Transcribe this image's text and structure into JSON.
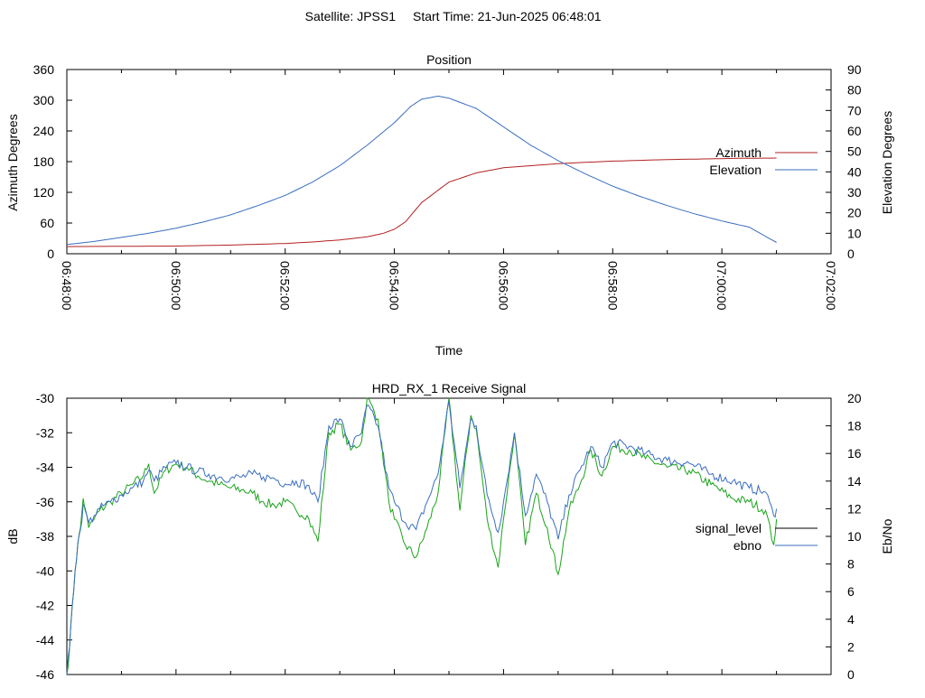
{
  "header": {
    "satellite_label": "Satellite: JPSS1",
    "start_time_label": "Start Time: 21-Jun-2025 06:48:01"
  },
  "colors": {
    "azimuth": "#b22222",
    "elevation": "#3a6ebf",
    "signal_level": "#1aa31a",
    "ebno": "#3a6ebf",
    "signal_level_legend": "#000000"
  },
  "chart_data": [
    {
      "type": "line",
      "title": "Position",
      "xlabel": "Time",
      "ylabel": "Azimuth Degrees",
      "y2label": "Elevation Degrees",
      "x_ticks": [
        "06:48:00",
        "06:50:00",
        "06:52:00",
        "06:54:00",
        "06:56:00",
        "06:58:00",
        "07:00:00",
        "07:02:00"
      ],
      "xlim_minutes": [
        0,
        14
      ],
      "ylim": [
        0,
        360
      ],
      "y_ticks": [
        "0",
        "60",
        "120",
        "180",
        "240",
        "300",
        "360"
      ],
      "y2lim": [
        0,
        90
      ],
      "y2_ticks": [
        "0",
        "10",
        "20",
        "30",
        "40",
        "50",
        "60",
        "70",
        "80",
        "90"
      ],
      "legend": "right",
      "series": [
        {
          "name": "Azimuth",
          "axis": "y1",
          "x_minutes": [
            0,
            1,
            2,
            3,
            3.5,
            4,
            4.5,
            5,
            5.5,
            5.8,
            6,
            6.2,
            6.5,
            7,
            7.5,
            8,
            9,
            10,
            11,
            11.8,
            12.3,
            13
          ],
          "values": [
            14,
            14.5,
            15,
            17,
            18.5,
            20,
            23,
            27,
            33,
            40,
            48,
            62,
            100,
            140,
            158,
            168,
            176,
            181,
            184,
            185.5,
            186.5,
            187
          ]
        },
        {
          "name": "Elevation",
          "axis": "y2",
          "x_minutes": [
            0,
            0.5,
            1,
            1.5,
            2,
            2.5,
            3,
            3.5,
            4,
            4.5,
            5,
            5.5,
            6,
            6.3,
            6.5,
            6.8,
            7,
            7.5,
            8,
            8.5,
            9,
            9.5,
            10,
            10.5,
            11,
            11.5,
            12,
            12.5,
            13
          ],
          "values": [
            4.5,
            6,
            8,
            10,
            12.5,
            15.5,
            19,
            23.5,
            28.5,
            35,
            43,
            53,
            64,
            72,
            75.5,
            77,
            76,
            71,
            62,
            53,
            45.5,
            39,
            33,
            28,
            23.5,
            19.5,
            16,
            13,
            5.5
          ]
        }
      ]
    },
    {
      "type": "line",
      "title": "HRD_RX_1 Receive Signal",
      "xlabel": "",
      "ylabel": "dB",
      "y2label": "Eb/No",
      "xlim_minutes": [
        0,
        14
      ],
      "ylim": [
        -46,
        -30
      ],
      "y_ticks": [
        "-46",
        "-44",
        "-42",
        "-40",
        "-38",
        "-36",
        "-34",
        "-32",
        "-30"
      ],
      "y2lim": [
        0,
        20
      ],
      "y2_ticks": [
        "0",
        "2",
        "4",
        "6",
        "8",
        "10",
        "12",
        "14",
        "16",
        "18",
        "20"
      ],
      "legend": "right",
      "series": [
        {
          "name": "signal_level",
          "axis": "y1",
          "x_minutes": [
            0,
            0.05,
            0.1,
            0.15,
            0.2,
            0.25,
            0.3,
            0.4,
            0.5,
            0.6,
            0.8,
            1,
            1.2,
            1.4,
            1.5,
            1.6,
            1.8,
            2,
            2.2,
            2.4,
            2.6,
            2.8,
            3,
            3.2,
            3.4,
            3.6,
            3.8,
            4,
            4.2,
            4.4,
            4.6,
            4.8,
            5,
            5.2,
            5.4,
            5.5,
            5.7,
            5.9,
            6,
            6.2,
            6.4,
            6.6,
            6.8,
            7,
            7.2,
            7.4,
            7.5,
            7.7,
            7.9,
            8,
            8.2,
            8.4,
            8.6,
            8.8,
            9,
            9.2,
            9.4,
            9.6,
            9.8,
            10,
            10.3,
            10.6,
            11,
            11.4,
            11.8,
            12.2,
            12.5,
            12.8,
            12.95,
            13
          ],
          "values": [
            -46,
            -44.5,
            -42,
            -40,
            -38.5,
            -37.5,
            -35.8,
            -37.5,
            -37,
            -36.5,
            -36,
            -35.5,
            -35,
            -34.5,
            -33.8,
            -35.5,
            -34.2,
            -33.8,
            -34,
            -34.5,
            -34.8,
            -35,
            -35.2,
            -35.3,
            -35.5,
            -36,
            -36.2,
            -36,
            -36.5,
            -36.8,
            -38.3,
            -32,
            -31.5,
            -33,
            -32.5,
            -30,
            -31.2,
            -36,
            -37,
            -38.5,
            -39.2,
            -37.5,
            -35.5,
            -30,
            -36.5,
            -31,
            -31.8,
            -37,
            -39.8,
            -37,
            -32,
            -38.5,
            -35.5,
            -37.5,
            -40.2,
            -36.5,
            -35,
            -33,
            -34.5,
            -32.8,
            -33,
            -33.5,
            -34,
            -34.2,
            -35,
            -35.8,
            -36,
            -36.5,
            -38.5,
            -37
          ]
        },
        {
          "name": "ebno",
          "axis": "y2",
          "x_minutes": [
            0,
            0.05,
            0.1,
            0.15,
            0.2,
            0.25,
            0.3,
            0.4,
            0.5,
            0.6,
            0.8,
            1,
            1.2,
            1.4,
            1.5,
            1.6,
            1.8,
            2,
            2.2,
            2.4,
            2.6,
            2.8,
            3,
            3.2,
            3.4,
            3.6,
            3.8,
            4,
            4.2,
            4.4,
            4.6,
            4.8,
            5,
            5.2,
            5.4,
            5.5,
            5.7,
            5.9,
            6,
            6.2,
            6.4,
            6.6,
            6.8,
            7,
            7.2,
            7.4,
            7.5,
            7.7,
            7.9,
            8,
            8.2,
            8.4,
            8.6,
            8.8,
            9,
            9.2,
            9.4,
            9.6,
            9.8,
            10,
            10.3,
            10.6,
            11,
            11.4,
            11.8,
            12.2,
            12.5,
            12.8,
            12.95,
            13
          ],
          "values": [
            0,
            2,
            5,
            7.5,
            9.5,
            10.5,
            12.3,
            11,
            11.5,
            12,
            12.5,
            13,
            13.5,
            14,
            14.8,
            14,
            15,
            15.3,
            15,
            14.7,
            14.5,
            14.3,
            14.2,
            14.3,
            14.5,
            14.3,
            14.2,
            13.8,
            14,
            13.7,
            12.5,
            18,
            18.5,
            16.5,
            17.5,
            19.5,
            18,
            13.5,
            12.5,
            11,
            10.5,
            12.5,
            14.5,
            19.8,
            13.5,
            18.5,
            18,
            13,
            10.3,
            12.5,
            17.5,
            11.5,
            14.5,
            12.5,
            9.8,
            13,
            14.8,
            16.5,
            15,
            16.8,
            16.5,
            16,
            15.5,
            15.3,
            14.5,
            14,
            13.5,
            13.2,
            11.5,
            12
          ]
        }
      ]
    }
  ]
}
